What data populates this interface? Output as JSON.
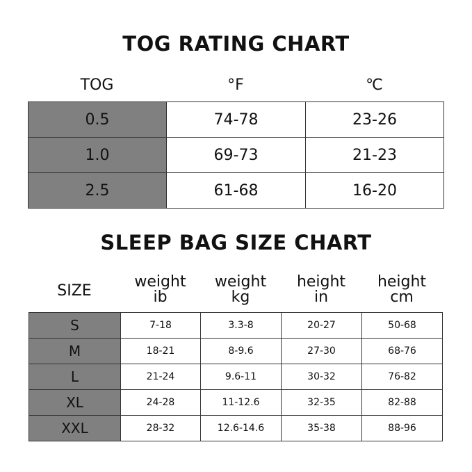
{
  "tog_chart": {
    "title": "TOG RATING CHART",
    "headers": [
      "TOG",
      "°F",
      "℃"
    ],
    "rows": [
      [
        "0.5",
        "74-78",
        "23-26"
      ],
      [
        "1.0",
        "69-73",
        "21-23"
      ],
      [
        "2.5",
        "61-68",
        "16-20"
      ]
    ]
  },
  "size_chart": {
    "title": "SLEEP BAG SIZE CHART",
    "headers": [
      {
        "line1": "SIZE",
        "line2": ""
      },
      {
        "line1": "weight",
        "line2": "ib"
      },
      {
        "line1": "weight",
        "line2": "kg"
      },
      {
        "line1": "height",
        "line2": "in"
      },
      {
        "line1": "height",
        "line2": "cm"
      }
    ],
    "rows": [
      [
        "S",
        "7-18",
        "3.3-8",
        "20-27",
        "50-68"
      ],
      [
        "M",
        "18-21",
        "8-9.6",
        "27-30",
        "68-76"
      ],
      [
        "L",
        "21-24",
        "9.6-11",
        "30-32",
        "76-82"
      ],
      [
        "XL",
        "24-28",
        "11-12.6",
        "32-35",
        "82-88"
      ],
      [
        "XXL",
        "28-32",
        "12.6-14.6",
        "35-38",
        "88-96"
      ]
    ]
  },
  "colors": {
    "label_cell": "#808080",
    "border": "#333333"
  }
}
